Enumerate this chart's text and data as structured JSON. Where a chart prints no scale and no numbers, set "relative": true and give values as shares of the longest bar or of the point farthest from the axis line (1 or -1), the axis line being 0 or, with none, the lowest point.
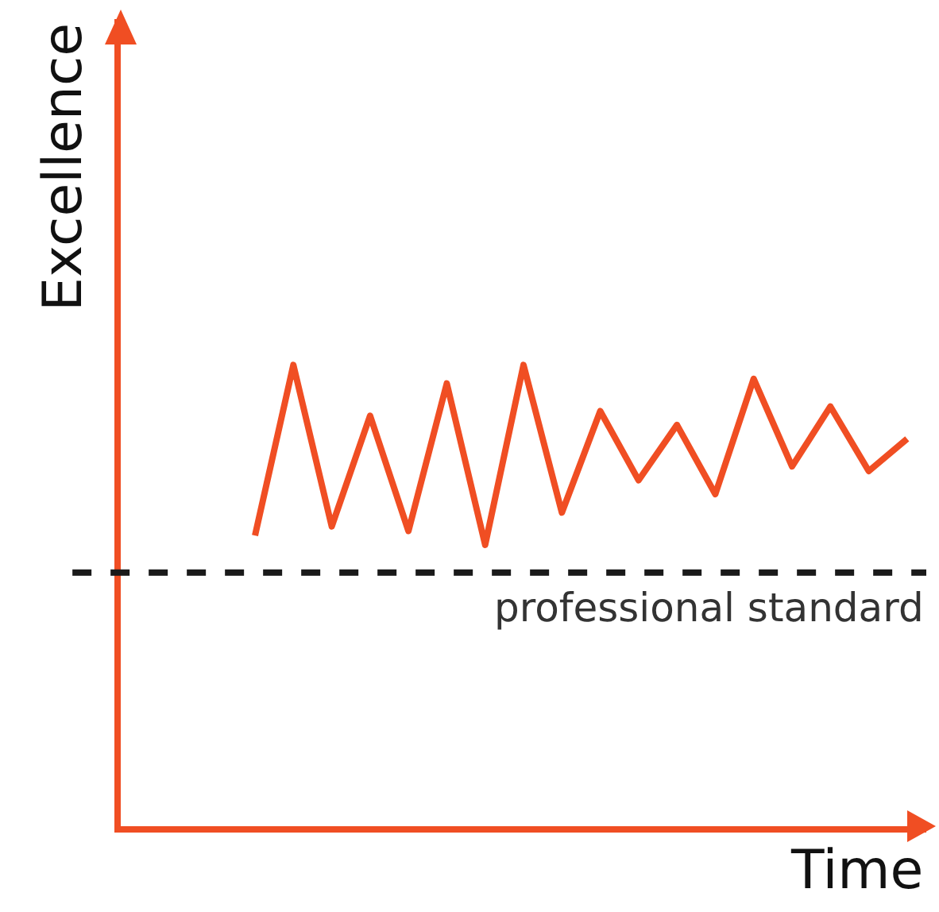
{
  "chart_data": {
    "type": "line",
    "relative": true,
    "xlabel": "Time",
    "ylabel": "Excellence",
    "categories": [
      null,
      null,
      null,
      null,
      null,
      null,
      null,
      null,
      null,
      null,
      null,
      null,
      null,
      null,
      null,
      null,
      null,
      null,
      null,
      null,
      null
    ],
    "series": [
      {
        "color": "#f04e23",
        "values": [
          null,
          null,
          null,
          0.63,
          1,
          0.65,
          0.89,
          0.64,
          0.96,
          0.61,
          1,
          0.68,
          0.9,
          0.75,
          0.87,
          0.72,
          0.97,
          0.78,
          0.91,
          0.77,
          0.84
        ]
      }
    ],
    "ref_lines": [
      {
        "axis": "y",
        "value": 0.55,
        "label": "professional standard",
        "color": "#1a1a1a",
        "line_style": "dashed"
      }
    ],
    "legend": false,
    "marker": "none"
  }
}
